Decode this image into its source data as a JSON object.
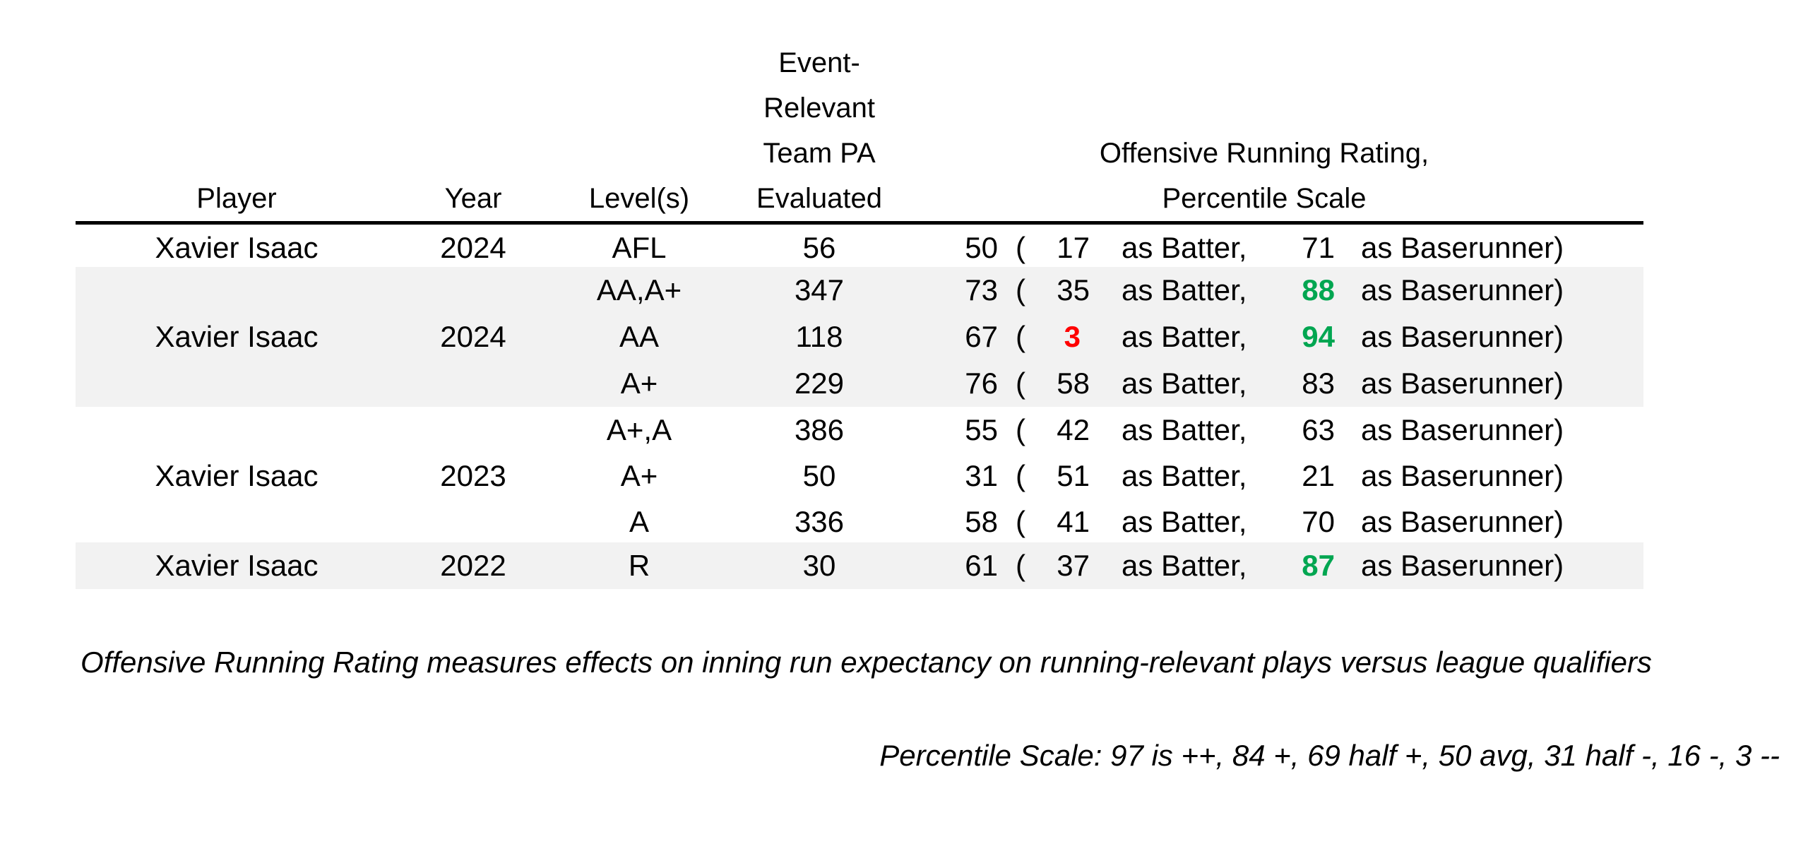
{
  "headers": {
    "player": "Player",
    "year": "Year",
    "levels": "Level(s)",
    "pa_line1": "Event-",
    "pa_line2": "Relevant",
    "pa_line3": "Team PA",
    "pa_line4": "Evaluated",
    "orr_line1": "Offensive Running Rating,",
    "orr_line2": "Percentile Scale"
  },
  "groups": [
    {
      "player": "Xavier Isaac",
      "year": "2024",
      "shaded": false
    },
    {
      "player": "Xavier Isaac",
      "year": "2024",
      "shaded": true
    },
    {
      "player": "Xavier Isaac",
      "year": "2023",
      "shaded": false
    },
    {
      "player": "Xavier Isaac",
      "year": "2022",
      "shaded": true
    }
  ],
  "rows": [
    {
      "level": "AFL",
      "pa": "56",
      "rating": "50",
      "open": "(",
      "batter": "17",
      "batter_label": "as Batter,",
      "baserunner": "71",
      "baserunner_label": "as Baserunner)"
    },
    {
      "level": "AA,A+",
      "pa": "347",
      "rating": "73",
      "open": "(",
      "batter": "35",
      "batter_label": "as Batter,",
      "baserunner": "88",
      "baserunner_label": "as Baserunner)"
    },
    {
      "level": "AA",
      "pa": "118",
      "rating": "67",
      "open": "(",
      "batter": "3",
      "batter_label": "as Batter,",
      "baserunner": "94",
      "baserunner_label": "as Baserunner)"
    },
    {
      "level": "A+",
      "pa": "229",
      "rating": "76",
      "open": "(",
      "batter": "58",
      "batter_label": "as Batter,",
      "baserunner": "83",
      "baserunner_label": "as Baserunner)"
    },
    {
      "level": "A+,A",
      "pa": "386",
      "rating": "55",
      "open": "(",
      "batter": "42",
      "batter_label": "as Batter,",
      "baserunner": "63",
      "baserunner_label": "as Baserunner)"
    },
    {
      "level": "A+",
      "pa": "50",
      "rating": "31",
      "open": "(",
      "batter": "51",
      "batter_label": "as Batter,",
      "baserunner": "21",
      "baserunner_label": "as Baserunner)"
    },
    {
      "level": "A",
      "pa": "336",
      "rating": "58",
      "open": "(",
      "batter": "41",
      "batter_label": "as Batter,",
      "baserunner": "70",
      "baserunner_label": "as Baserunner)"
    },
    {
      "level": "R",
      "pa": "30",
      "rating": "61",
      "open": "(",
      "batter": "37",
      "batter_label": "as Batter,",
      "baserunner": "87",
      "baserunner_label": "as Baserunner)"
    }
  ],
  "highlight_colors": {
    "high": "#00a651",
    "low": "#ff0000"
  },
  "notes": {
    "definition": "Offensive Running Rating measures effects on inning run expectancy on running-relevant plays versus league qualifiers",
    "scale": "Percentile Scale: 97 is ++, 84 +, 69 half +, 50 avg, 31 half -, 16 -, 3 --"
  }
}
